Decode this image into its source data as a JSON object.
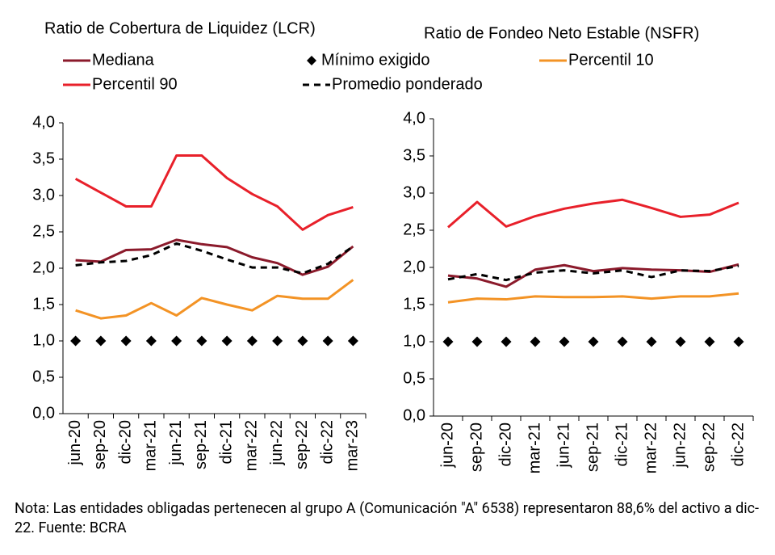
{
  "chart_data": [
    {
      "type": "line",
      "title": "Ratio de Cobertura de Liquidez (LCR)",
      "categories": [
        "jun-20",
        "sep-20",
        "dic-20",
        "mar-21",
        "jun-21",
        "sep-21",
        "dic-21",
        "mar-22",
        "jun-22",
        "sep-22",
        "dic-22",
        "mar-23"
      ],
      "ylim": [
        0,
        4
      ],
      "yticks": [
        {
          "value": 0,
          "label": "0,0"
        },
        {
          "value": 0.5,
          "label": "0,5"
        },
        {
          "value": 1,
          "label": "1,0"
        },
        {
          "value": 1.5,
          "label": "1,5"
        },
        {
          "value": 2,
          "label": "2,0"
        },
        {
          "value": 2.5,
          "label": "2,5"
        },
        {
          "value": 3,
          "label": "3,0"
        },
        {
          "value": 3.5,
          "label": "3,5"
        },
        {
          "value": 4,
          "label": "4,0"
        }
      ],
      "series": [
        {
          "name": "Mediana",
          "color": "#8b1a2b",
          "values": [
            2.11,
            2.09,
            2.25,
            2.26,
            2.39,
            2.33,
            2.29,
            2.15,
            2.07,
            1.91,
            2.02,
            2.3
          ]
        },
        {
          "name": "Mínimo exigido",
          "color": "#000000",
          "marker": "diamond",
          "values": [
            1,
            1,
            1,
            1,
            1,
            1,
            1,
            1,
            1,
            1,
            1,
            1
          ]
        },
        {
          "name": "Percentil 10",
          "color": "#f39325",
          "values": [
            1.42,
            1.31,
            1.35,
            1.52,
            1.35,
            1.59,
            1.5,
            1.42,
            1.62,
            1.58,
            1.58,
            1.84
          ]
        },
        {
          "name": "Percentil 90",
          "color": "#e8202a",
          "values": [
            3.23,
            3.04,
            2.85,
            2.85,
            3.55,
            3.55,
            3.24,
            3.02,
            2.85,
            2.53,
            2.73,
            2.84
          ]
        },
        {
          "name": "Promedio ponderado",
          "color": "#000000",
          "dash": true,
          "values": [
            2.04,
            2.08,
            2.1,
            2.18,
            2.34,
            2.24,
            2.12,
            2.01,
            2.01,
            1.93,
            2.06,
            2.3
          ]
        }
      ]
    },
    {
      "type": "line",
      "title": "Ratio de Fondeo Neto Estable (NSFR)",
      "categories": [
        "jun-20",
        "sep-20",
        "dic-20",
        "mar-21",
        "jun-21",
        "sep-21",
        "dic-21",
        "mar-22",
        "jun-22",
        "sep-22",
        "dic-22"
      ],
      "ylim": [
        0,
        4
      ],
      "yticks": [
        {
          "value": 0,
          "label": "0,0"
        },
        {
          "value": 0.5,
          "label": "0,5"
        },
        {
          "value": 1,
          "label": "1,0"
        },
        {
          "value": 1.5,
          "label": "1,5"
        },
        {
          "value": 2,
          "label": "2,0"
        },
        {
          "value": 2.5,
          "label": "2,5"
        },
        {
          "value": 3,
          "label": "3,0"
        },
        {
          "value": 3.5,
          "label": "3,5"
        },
        {
          "value": 4,
          "label": "4,0"
        }
      ],
      "series": [
        {
          "color": "#8b1a2b",
          "values": [
            1.89,
            1.85,
            1.74,
            1.97,
            2.03,
            1.95,
            1.99,
            1.97,
            1.96,
            1.94,
            2.04
          ]
        },
        {
          "color": "#000000",
          "marker": "diamond",
          "values": [
            1,
            1,
            1,
            1,
            1,
            1,
            1,
            1,
            1,
            1,
            1
          ]
        },
        {
          "color": "#f39325",
          "values": [
            1.53,
            1.58,
            1.57,
            1.61,
            1.6,
            1.6,
            1.61,
            1.58,
            1.61,
            1.61,
            1.65
          ]
        },
        {
          "color": "#e8202a",
          "values": [
            2.54,
            2.88,
            2.55,
            2.69,
            2.79,
            2.86,
            2.91,
            2.8,
            2.68,
            2.71,
            2.87
          ]
        },
        {
          "color": "#000000",
          "dash": true,
          "values": [
            1.84,
            1.91,
            1.83,
            1.93,
            1.96,
            1.92,
            1.96,
            1.87,
            1.96,
            1.95,
            2.02
          ]
        }
      ]
    }
  ],
  "note": "Nota: Las entidades obligadas pertenecen al grupo A (Comunicación \"A\" 6538) representaron 88,6% del activo a dic-22. Fuente: BCRA"
}
